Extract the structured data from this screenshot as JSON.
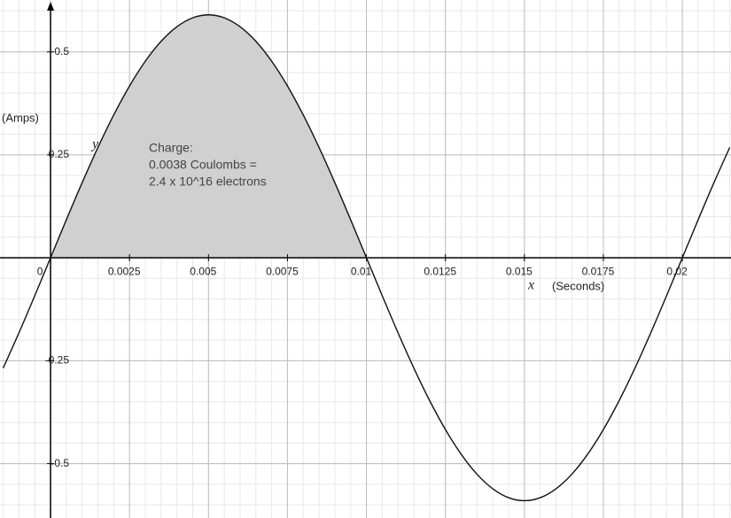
{
  "chart_data": {
    "type": "line",
    "x_axis_label": "(Seconds)",
    "y_axis_label": "(Amps)",
    "x_symbol": "x",
    "y_symbol": "y",
    "annotation": [
      "Charge:",
      "0.0038 Coulombs =",
      "2.4 x 10^16 electrons"
    ],
    "xlim": [
      -0.0016,
      0.02154
    ],
    "ylim": [
      -0.632,
      0.626
    ],
    "xticks": [
      0,
      0.0025,
      0.005,
      0.0075,
      0.01,
      0.0125,
      0.015,
      0.0175,
      0.02
    ],
    "yticks": [
      -0.5,
      -0.25,
      0.25,
      0.5
    ],
    "xminor": 0.0005,
    "yminor": 0.05,
    "grid": true,
    "shade_range": [
      0,
      0.01
    ],
    "shade_color": "#d0d0d0",
    "series": [
      {
        "color": "#111111",
        "x": [
          -0.0015,
          -0.001,
          -0.0005,
          0,
          0.0005,
          0.001,
          0.0015,
          0.002,
          0.0025,
          0.003,
          0.0035,
          0.004,
          0.0045,
          0.005,
          0.0055,
          0.006,
          0.0065,
          0.007,
          0.0075,
          0.008,
          0.0085,
          0.009,
          0.0095,
          0.01,
          0.0105,
          0.011,
          0.0115,
          0.012,
          0.0125,
          0.013,
          0.0135,
          0.014,
          0.0145,
          0.015,
          0.0155,
          0.016,
          0.0165,
          0.017,
          0.0175,
          0.018,
          0.0185,
          0.019,
          0.0195,
          0.02,
          0.0205,
          0.021,
          0.0215
        ],
        "values": [
          -0.2679,
          -0.1823,
          -0.0923,
          0,
          0.0923,
          0.1823,
          0.2679,
          0.3468,
          0.4172,
          0.4773,
          0.5257,
          0.5611,
          0.5827,
          0.59,
          0.5827,
          0.5611,
          0.5257,
          0.4773,
          0.4172,
          0.3468,
          0.2679,
          0.1823,
          0.0923,
          0,
          -0.0923,
          -0.1823,
          -0.2679,
          -0.3468,
          -0.4172,
          -0.4773,
          -0.5257,
          -0.5611,
          -0.5827,
          -0.59,
          -0.5827,
          -0.5611,
          -0.5257,
          -0.4773,
          -0.4172,
          -0.3468,
          -0.2679,
          -0.1823,
          -0.0923,
          0,
          0.0923,
          0.1823,
          0.2679
        ]
      }
    ]
  }
}
